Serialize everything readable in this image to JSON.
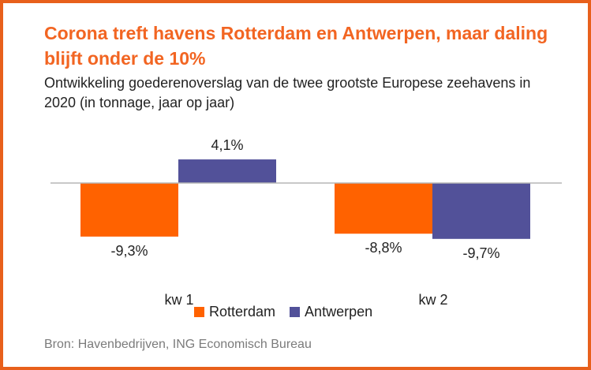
{
  "title": "Corona treft havens Rotterdam en Antwerpen, maar daling blijft onder de 10%",
  "subtitle": "Ontwikkeling goederenoverslag van de twee grootste Europese zeehavens in 2020 (in tonnage, jaar op jaar)",
  "source": "Bron: Havenbedrijven, ING Economisch Bureau",
  "colors": {
    "rotterdam": "#ff6200",
    "antwerpen": "#525199",
    "accent": "#e8601c"
  },
  "chart_data": {
    "type": "bar",
    "categories": [
      "kw 1",
      "kw 2"
    ],
    "series": [
      {
        "name": "Rotterdam",
        "values": [
          -9.3,
          -8.8
        ],
        "labels": [
          "-9,3%",
          "-8,8%"
        ]
      },
      {
        "name": "Antwerpen",
        "values": [
          4.1,
          -9.7
        ],
        "labels": [
          "4,1%",
          "-9,7%"
        ]
      }
    ],
    "title": "Corona treft havens Rotterdam en Antwerpen, maar daling blijft onder de 10%",
    "legend": "bottom",
    "grid": false
  }
}
